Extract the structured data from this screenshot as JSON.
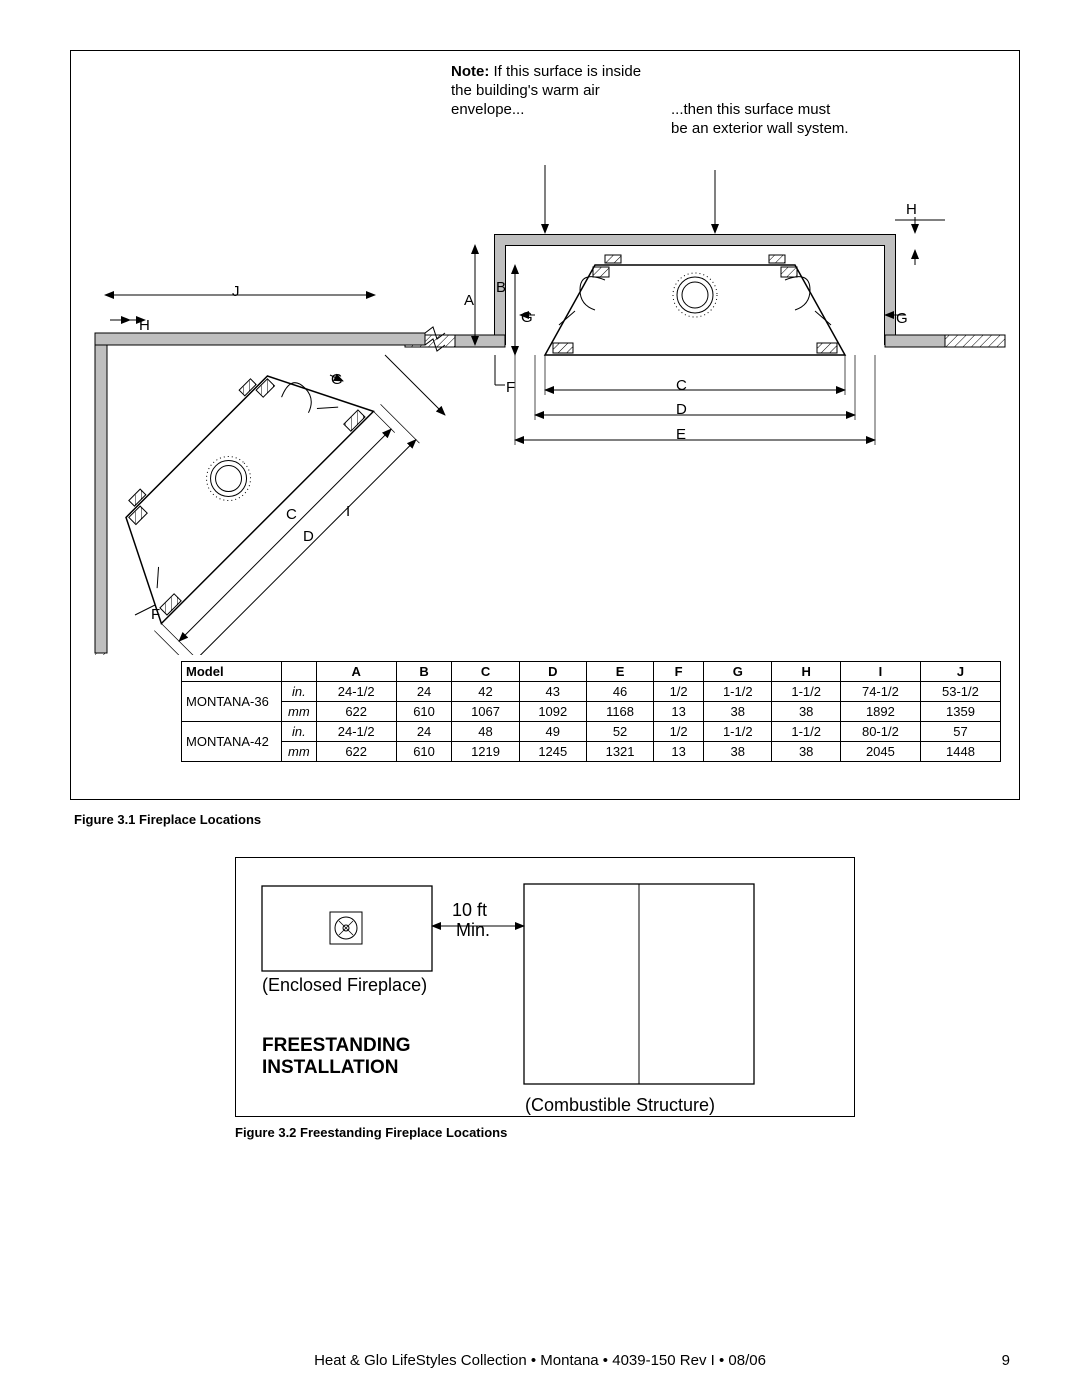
{
  "fig1": {
    "note_left_b": "Note:",
    "note_left": " If this surface is inside the building's warm air envelope...",
    "note_right": "...then this surface must be an exterior wall system.",
    "labels": {
      "J": "J",
      "H": "H",
      "G": "G",
      "C": "C",
      "D": "D",
      "I": "I",
      "F": "F",
      "A": "A",
      "B": "B",
      "E": "E"
    },
    "table": {
      "header": [
        "Model",
        "",
        "A",
        "B",
        "C",
        "D",
        "E",
        "F",
        "G",
        "H",
        "I",
        "J"
      ],
      "rows": [
        {
          "model": "MONTANA-36",
          "unit": "in.",
          "vals": [
            "24-1/2",
            "24",
            "42",
            "43",
            "46",
            "1/2",
            "1-1/2",
            "1-1/2",
            "74-1/2",
            "53-1/2"
          ]
        },
        {
          "model": "MONTANA-36",
          "unit": "mm",
          "vals": [
            "622",
            "610",
            "1067",
            "1092",
            "1168",
            "13",
            "38",
            "38",
            "1892",
            "1359"
          ]
        },
        {
          "model": "MONTANA-42",
          "unit": "in.",
          "vals": [
            "24-1/2",
            "24",
            "48",
            "49",
            "52",
            "1/2",
            "1-1/2",
            "1-1/2",
            "80-1/2",
            "57"
          ]
        },
        {
          "model": "MONTANA-42",
          "unit": "mm",
          "vals": [
            "622",
            "610",
            "1219",
            "1245",
            "1321",
            "13",
            "38",
            "38",
            "2045",
            "1448"
          ]
        }
      ]
    },
    "caption": "Figure 3.1    Fireplace Locations"
  },
  "fig2": {
    "distance": "10 ft",
    "min": "Min.",
    "enclosed": "(Enclosed Fireplace)",
    "title": "FREESTANDING INSTALLATION",
    "combustible": "(Combustible Structure)",
    "caption": "Figure 3.2    Freestanding Fireplace Locations"
  },
  "footer": {
    "text": "Heat & Glo LifeStyles Collection • Montana • 4039-150 Rev I • 08/06",
    "page": "9"
  },
  "colors": {
    "wall_fill": "#bfbfbf",
    "stroke": "#000000"
  }
}
